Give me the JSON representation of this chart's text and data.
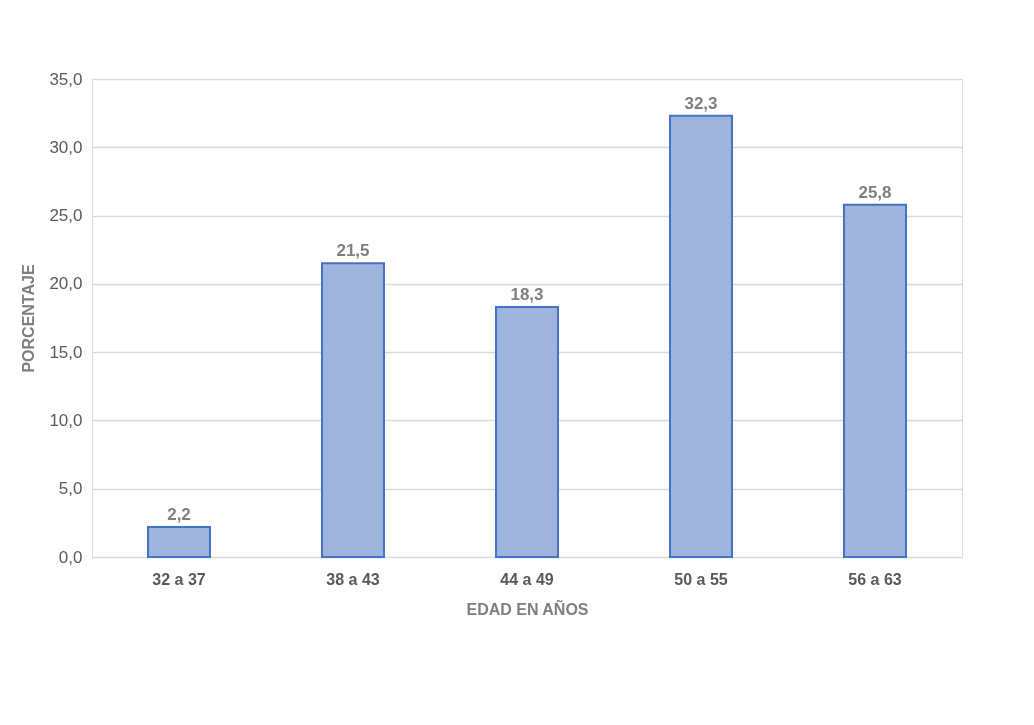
{
  "chart_data": {
    "type": "bar",
    "xlabel": "EDAD EN AÑOS",
    "ylabel": "PORCENTAJE",
    "categories": [
      "32 a 37",
      "38 a 43",
      "44 a 49",
      "50 a 55",
      "56 a 63"
    ],
    "values": [
      2.2,
      21.5,
      18.3,
      32.3,
      25.8
    ],
    "value_labels": [
      "2,2",
      "21,5",
      "18,3",
      "32,3",
      "25,8"
    ],
    "color": "#9fb4da",
    "ylim": [
      0,
      35
    ],
    "yticks": [
      {
        "value": 0,
        "label": "0,0"
      },
      {
        "value": 5,
        "label": "5,0"
      },
      {
        "value": 10,
        "label": "10,0"
      },
      {
        "value": 15,
        "label": "15,0"
      },
      {
        "value": 20,
        "label": "20,0"
      },
      {
        "value": 25,
        "label": "25,0"
      },
      {
        "value": 30,
        "label": "30,0"
      },
      {
        "value": 35,
        "label": "35,0"
      }
    ],
    "grid": "y"
  }
}
